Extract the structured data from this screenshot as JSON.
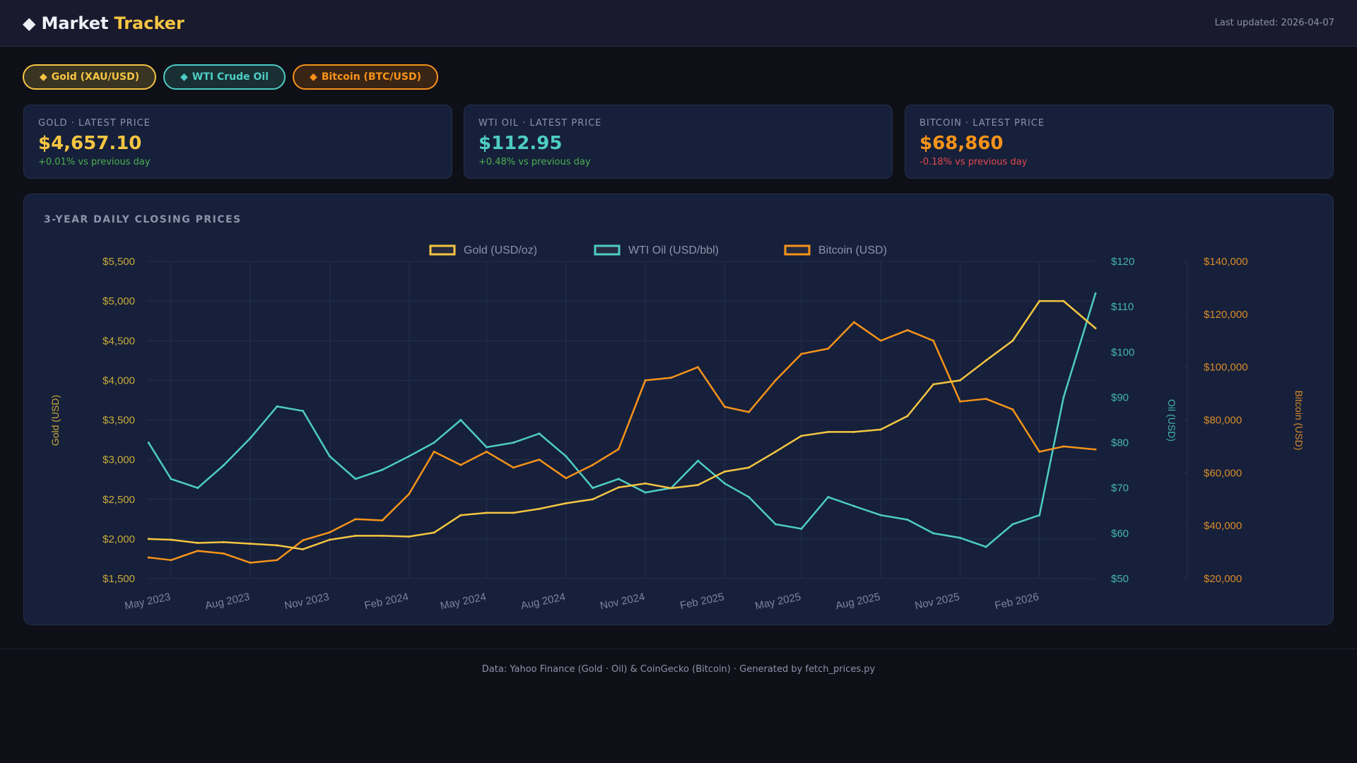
{
  "header": {
    "title_main": "Market",
    "title_accent": "Tracker",
    "logo_icon": "diamond-icon",
    "last_updated": "Last updated: 2026-04-07"
  },
  "filters": [
    {
      "label": "Gold (XAU/USD)",
      "icon": "diamond-icon"
    },
    {
      "label": "WTI Crude Oil",
      "icon": "diamond-icon"
    },
    {
      "label": "Bitcoin (BTC/USD)",
      "icon": "diamond-icon"
    }
  ],
  "cards": [
    {
      "label": "GOLD · LATEST PRICE",
      "price": "$4,657.10",
      "change": "+0.01% vs previous day",
      "color": "#f5c542",
      "change_color": "#4caf50"
    },
    {
      "label": "WTI OIL · LATEST PRICE",
      "price": "$112.95",
      "change": "+0.48% vs previous day",
      "color": "#4ecdc4",
      "change_color": "#4caf50"
    },
    {
      "label": "BITCOIN · LATEST PRICE",
      "price": "$68,860",
      "change": "-0.18% vs previous day",
      "color": "#f7931a",
      "change_color": "#e5484d"
    }
  ],
  "chart": {
    "title": "3-YEAR DAILY CLOSING PRICES"
  },
  "chart_data": {
    "type": "line",
    "x_range": [
      "2023-04-04",
      "2026-04-07"
    ],
    "x_ticks": [
      "May 2023",
      "Aug 2023",
      "Nov 2023",
      "Feb 2024",
      "May 2024",
      "Aug 2024",
      "Nov 2024",
      "Feb 2025",
      "May 2025",
      "Aug 2025",
      "Nov 2025",
      "Feb 2026"
    ],
    "x_tick_dates": [
      "2023-05-01",
      "2023-08-01",
      "2023-11-01",
      "2024-02-01",
      "2024-05-01",
      "2024-08-01",
      "2024-11-01",
      "2025-02-01",
      "2025-05-01",
      "2025-08-01",
      "2025-11-01",
      "2026-02-01"
    ],
    "grid": true,
    "legend": "top-center",
    "x": [
      "2023-04-05",
      "2023-05-01",
      "2023-06-01",
      "2023-07-01",
      "2023-08-01",
      "2023-09-01",
      "2023-10-01",
      "2023-11-01",
      "2023-12-01",
      "2024-01-01",
      "2024-02-01",
      "2024-03-01",
      "2024-04-01",
      "2024-05-01",
      "2024-06-01",
      "2024-07-01",
      "2024-08-01",
      "2024-09-01",
      "2024-10-01",
      "2024-11-01",
      "2024-12-01",
      "2025-01-01",
      "2025-02-01",
      "2025-03-01",
      "2025-04-01",
      "2025-05-01",
      "2025-06-01",
      "2025-07-01",
      "2025-08-01",
      "2025-09-01",
      "2025-10-01",
      "2025-11-01",
      "2025-12-01",
      "2026-01-01",
      "2026-02-01",
      "2026-03-01",
      "2026-04-07"
    ],
    "series": [
      {
        "name": "Gold (USD/oz)",
        "axis": "left",
        "color": "#f5c542",
        "values": [
          2000,
          1990,
          1950,
          1960,
          1940,
          1920,
          1870,
          1990,
          2040,
          2040,
          2030,
          2080,
          2300,
          2330,
          2330,
          2380,
          2450,
          2500,
          2650,
          2700,
          2640,
          2680,
          2850,
          2900,
          3100,
          3300,
          3350,
          3350,
          3380,
          3550,
          3950,
          4000,
          4250,
          4500,
          5000,
          5000,
          4657.1
        ]
      },
      {
        "name": "WTI Oil (USD/bbl)",
        "axis": "oil",
        "color": "#4ecdc4",
        "values": [
          80,
          72,
          70,
          75,
          81,
          88,
          87,
          77,
          72,
          74,
          77,
          80,
          85,
          79,
          80,
          82,
          77,
          70,
          72,
          69,
          70,
          76,
          71,
          68,
          62,
          61,
          68,
          66,
          64,
          63,
          60,
          59,
          57,
          62,
          64,
          90,
          112.95
        ]
      },
      {
        "name": "Bitcoin (USD)",
        "axis": "btc",
        "color": "#f7931a",
        "values": [
          28000,
          27000,
          30500,
          29500,
          26000,
          27000,
          34500,
          37500,
          42500,
          42000,
          52000,
          68000,
          63000,
          68000,
          62000,
          65000,
          58000,
          63000,
          69000,
          95000,
          96000,
          100000,
          85000,
          83000,
          95000,
          105000,
          107000,
          117000,
          110000,
          114000,
          110000,
          87000,
          88000,
          84000,
          68000,
          70000,
          68860
        ]
      }
    ],
    "axes": {
      "left": {
        "title": "Gold (USD)",
        "range": [
          1500,
          5500
        ],
        "ticks": [
          "$1,500",
          "$2,000",
          "$2,500",
          "$3,000",
          "$3,500",
          "$4,000",
          "$4,500",
          "$5,000",
          "$5,500"
        ],
        "tick_values": [
          1500,
          2000,
          2500,
          3000,
          3500,
          4000,
          4500,
          5000,
          5500
        ]
      },
      "oil": {
        "title": "Oil (USD)",
        "range": [
          50,
          120
        ],
        "ticks": [
          "$50",
          "$60",
          "$70",
          "$80",
          "$90",
          "$100",
          "$110",
          "$120"
        ],
        "tick_values": [
          50,
          60,
          70,
          80,
          90,
          100,
          110,
          120
        ]
      },
      "btc": {
        "title": "Bitcoin (USD)",
        "range": [
          20000,
          140000
        ],
        "ticks": [
          "$20,000",
          "$40,000",
          "$60,000",
          "$80,000",
          "$100,000",
          "$120,000",
          "$140,000"
        ],
        "tick_values": [
          20000,
          40000,
          60000,
          80000,
          100000,
          120000,
          140000
        ]
      }
    }
  },
  "footer": {
    "text": "Data: Yahoo Finance (Gold · Oil) & CoinGecko (Bitcoin)  ·  Generated by fetch_prices.py"
  }
}
